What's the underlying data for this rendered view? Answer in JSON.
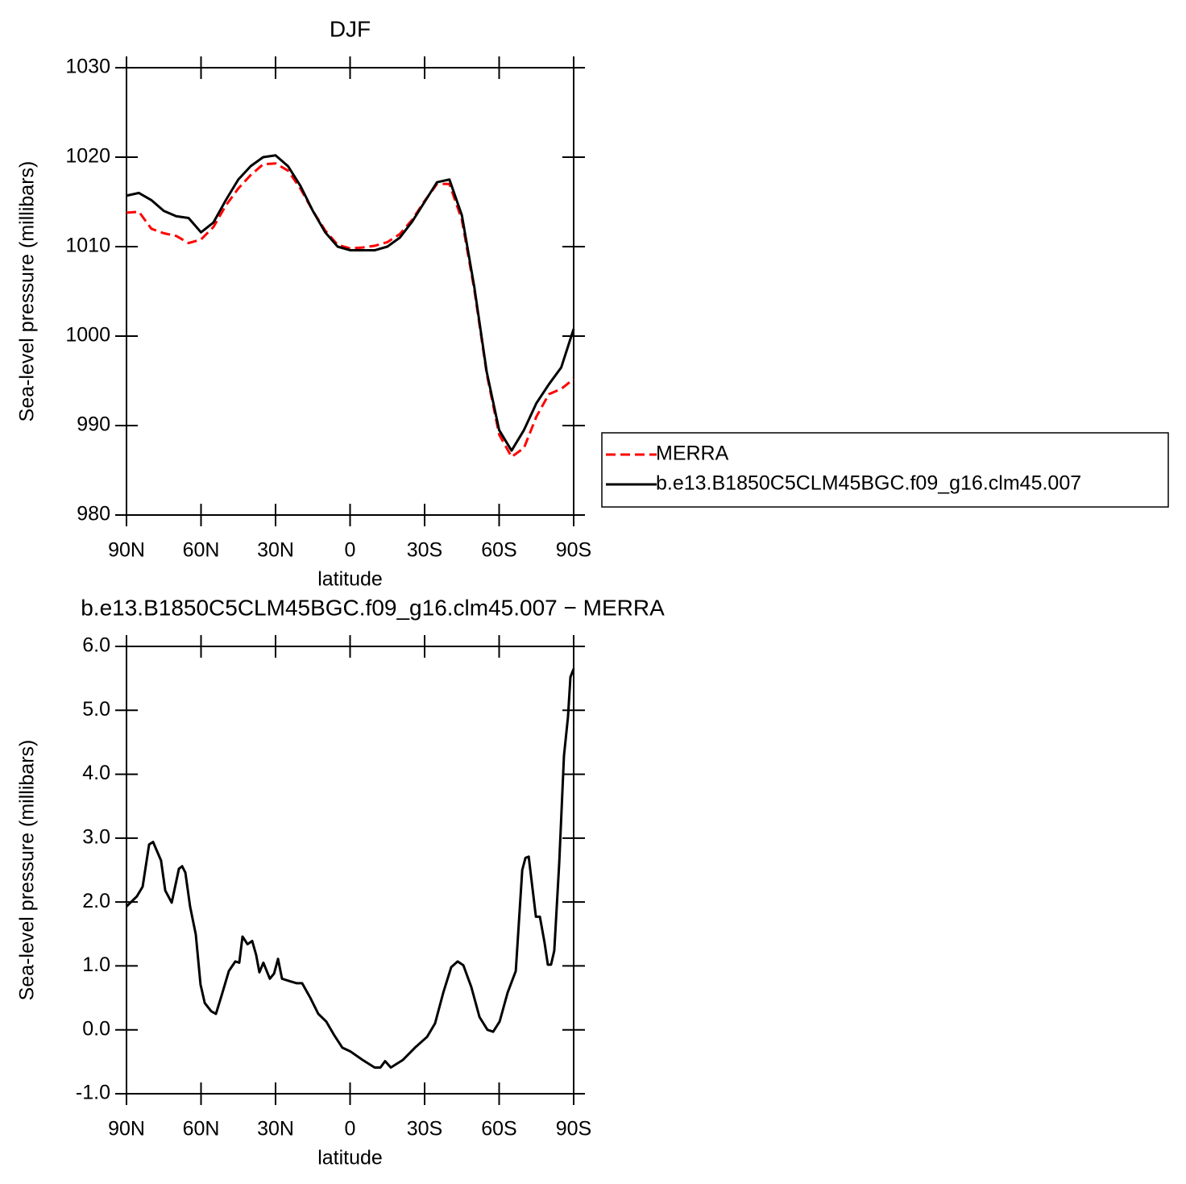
{
  "chart_data": [
    {
      "type": "line",
      "title": "DJF",
      "xlabel": "latitude",
      "ylabel": "Sea-level pressure (millibars)",
      "x": [
        90,
        85,
        80,
        75,
        70,
        65,
        60,
        55,
        50,
        45,
        40,
        35,
        30,
        25,
        20,
        15,
        10,
        5,
        0,
        -5,
        -10,
        -15,
        -20,
        -25,
        -30,
        -35,
        -40,
        -45,
        -50,
        -55,
        -60,
        -65,
        -70,
        -75,
        -80,
        -85,
        -90
      ],
      "xlim": [
        90,
        -90
      ],
      "xticks": [
        {
          "value": 90,
          "label": "90N"
        },
        {
          "value": 60,
          "label": "60N"
        },
        {
          "value": 30,
          "label": "30N"
        },
        0,
        {
          "value": -30,
          "label": "30S"
        },
        {
          "value": -60,
          "label": "60S"
        },
        {
          "value": -90,
          "label": "90S"
        }
      ],
      "ylim": [
        980,
        1030
      ],
      "yticks": [
        980,
        990,
        1000,
        1010,
        1020,
        1030
      ],
      "legend_position": "right",
      "series": [
        {
          "name": "MERRA",
          "color": "#ff0000",
          "line_style": "dashed",
          "values": [
            1013.8,
            1013.9,
            1012.0,
            1011.5,
            1011.2,
            1010.4,
            1010.8,
            1012.2,
            1014.6,
            1016.5,
            1018.0,
            1019.2,
            1019.3,
            1018.5,
            1016.5,
            1014.0,
            1011.8,
            1010.2,
            1009.8,
            1009.9,
            1010.1,
            1010.5,
            1011.4,
            1013.0,
            1015.1,
            1017.0,
            1017.0,
            1013.0,
            1005.2,
            995.8,
            989.0,
            986.5,
            987.5,
            991.0,
            993.5,
            994.1,
            995.2
          ]
        },
        {
          "name": "b.e13.B1850C5CLM45BGC.f09_g16.clm45.007",
          "color": "#000000",
          "line_style": "solid",
          "values": [
            1015.7,
            1016.0,
            1015.2,
            1014.0,
            1013.4,
            1013.2,
            1011.6,
            1012.7,
            1015.2,
            1017.5,
            1019.0,
            1020.0,
            1020.2,
            1019.0,
            1016.8,
            1014.0,
            1011.6,
            1010.0,
            1009.6,
            1009.6,
            1009.6,
            1010.0,
            1011.0,
            1012.8,
            1015.0,
            1017.2,
            1017.5,
            1013.5,
            1005.5,
            996.0,
            989.5,
            987.2,
            989.5,
            992.5,
            994.6,
            996.5,
            1000.8
          ]
        }
      ]
    },
    {
      "type": "line",
      "title": "b.e13.B1850C5CLM45BGC.f09_g16.clm45.007 − MERRA",
      "xlabel": "latitude",
      "ylabel": "Sea-level pressure (millibars)",
      "x": [
        90,
        85.8,
        83.5,
        80.9,
        79.3,
        76.1,
        74.4,
        71.8,
        68.9,
        67.6,
        66.3,
        64.4,
        62.1,
        60.2,
        58.5,
        55.9,
        54.0,
        51.7,
        48.8,
        46.2,
        44.6,
        43.3,
        41.3,
        39.4,
        37.8,
        36.5,
        34.9,
        32.3,
        30.6,
        29.0,
        27.4,
        24.2,
        21.6,
        19.3,
        16.0,
        12.8,
        9.6,
        6.3,
        3.1,
        -0.2,
        -5.0,
        -9.9,
        -12.2,
        -14.1,
        -16.4,
        -21.3,
        -26.1,
        -31.0,
        -34.2,
        -37.5,
        -40.7,
        -43.3,
        -45.6,
        -48.8,
        -52.1,
        -55.3,
        -57.6,
        -60.2,
        -63.4,
        -66.7,
        -69.3,
        -70.6,
        -71.9,
        -74.8,
        -76.4,
        -78.3,
        -79.6,
        -80.9,
        -82.2,
        -84.2,
        -86.1,
        -87.7,
        -88.7,
        -90
      ],
      "xlim": [
        90,
        -90
      ],
      "xticks": [
        {
          "value": 90,
          "label": "90N"
        },
        {
          "value": 60,
          "label": "60N"
        },
        {
          "value": 30,
          "label": "30N"
        },
        0,
        {
          "value": -30,
          "label": "30S"
        },
        {
          "value": -60,
          "label": "60S"
        },
        {
          "value": -90,
          "label": "90S"
        }
      ],
      "ylim": [
        -1,
        6
      ],
      "yticks": [
        {
          "value": -1,
          "label": "-1.0"
        },
        {
          "value": 0,
          "label": "0.0"
        },
        {
          "value": 1,
          "label": "1.0"
        },
        {
          "value": 2,
          "label": "2.0"
        },
        {
          "value": 3,
          "label": "3.0"
        },
        {
          "value": 4,
          "label": "4.0"
        },
        {
          "value": 5,
          "label": "5.0"
        },
        {
          "value": 6,
          "label": "6.0"
        }
      ],
      "series": [
        {
          "color": "#000000",
          "line_style": "solid",
          "values": [
            1.93,
            2.09,
            2.24,
            2.9,
            2.94,
            2.65,
            2.18,
            1.99,
            2.52,
            2.56,
            2.46,
            1.93,
            1.49,
            0.71,
            0.42,
            0.29,
            0.25,
            0.54,
            0.92,
            1.07,
            1.05,
            1.46,
            1.34,
            1.39,
            1.17,
            0.9,
            1.05,
            0.8,
            0.88,
            1.11,
            0.8,
            0.76,
            0.73,
            0.73,
            0.5,
            0.25,
            0.13,
            -0.09,
            -0.28,
            -0.34,
            -0.47,
            -0.59,
            -0.59,
            -0.49,
            -0.59,
            -0.47,
            -0.28,
            -0.11,
            0.1,
            0.58,
            0.98,
            1.07,
            1.01,
            0.67,
            0.2,
            0.0,
            -0.03,
            0.13,
            0.58,
            0.92,
            2.5,
            2.69,
            2.71,
            1.77,
            1.77,
            1.36,
            1.02,
            1.02,
            1.24,
            2.62,
            4.29,
            4.89,
            5.52,
            5.65
          ]
        }
      ]
    }
  ]
}
